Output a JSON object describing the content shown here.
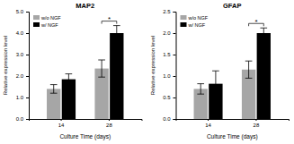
{
  "chart_data": [
    {
      "type": "bar",
      "title": "MAP2",
      "x_label": "Culture Time (days)",
      "y_label": "Relative expression level",
      "categories": [
        "14",
        "28"
      ],
      "series": [
        {
          "name": "w/o NGF",
          "color": "#a6a6a6",
          "values": [
            1.4,
            2.35
          ],
          "errors": [
            0.2,
            0.4
          ]
        },
        {
          "name": "w/ NGF",
          "color": "#000000",
          "values": [
            1.85,
            4.0
          ],
          "errors": [
            0.25,
            0.35
          ]
        }
      ],
      "ylim": [
        0,
        5
      ],
      "yticks": [
        {
          "value": 0,
          "label": "0.0"
        },
        {
          "value": 1,
          "label": "1.0"
        },
        {
          "value": 2,
          "label": "2.0"
        },
        {
          "value": 3,
          "label": "3.0"
        },
        {
          "value": 4,
          "label": "4.0"
        },
        {
          "value": 5,
          "label": "5.0"
        }
      ],
      "legend": "upper left",
      "annotations": [
        {
          "text": "*",
          "category": "28"
        }
      ]
    },
    {
      "type": "bar",
      "title": "GFAP",
      "x_label": "Culture Time (days)",
      "y_label": "Relative expression level",
      "categories": [
        "14",
        "28"
      ],
      "series": [
        {
          "name": "w/o NGF",
          "color": "#a6a6a6",
          "values": [
            0.7,
            1.15
          ],
          "errors": [
            0.12,
            0.2
          ]
        },
        {
          "name": "w/ NGF",
          "color": "#000000",
          "values": [
            0.82,
            2.0
          ],
          "errors": [
            0.3,
            0.12
          ]
        }
      ],
      "ylim": [
        0,
        2.5
      ],
      "yticks": [
        {
          "value": 0,
          "label": "0.0"
        },
        {
          "value": 0.5,
          "label": "0.5"
        },
        {
          "value": 1,
          "label": "1.0"
        },
        {
          "value": 1.5,
          "label": "1.5"
        },
        {
          "value": 2,
          "label": "2.0"
        },
        {
          "value": 2.5,
          "label": "2.5"
        }
      ],
      "legend": "upper left",
      "annotations": [
        {
          "text": "*",
          "category": "28"
        }
      ]
    }
  ]
}
